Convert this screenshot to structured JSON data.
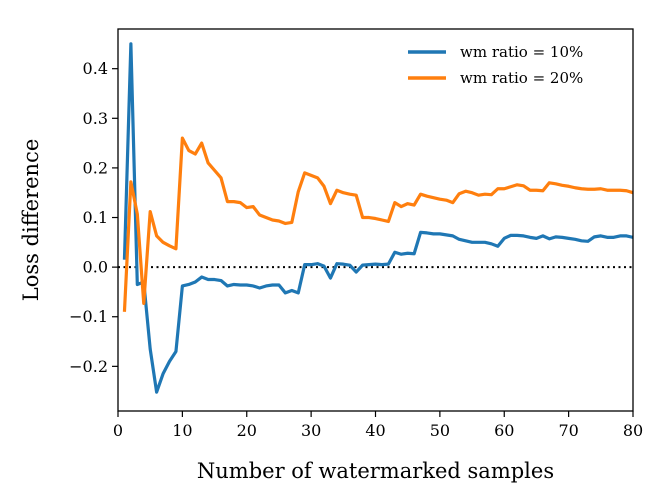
{
  "chart_data": {
    "type": "line",
    "title": "",
    "xlabel": "Number of watermarked samples",
    "ylabel": "Loss difference",
    "xlim": [
      0,
      80
    ],
    "ylim": [
      -0.29,
      0.48
    ],
    "xticks": [
      0,
      10,
      20,
      30,
      40,
      50,
      60,
      70,
      80
    ],
    "yticks": [
      -0.2,
      -0.1,
      0.0,
      0.1,
      0.2,
      0.3,
      0.4
    ],
    "xtick_labels": [
      "0",
      "10",
      "20",
      "30",
      "40",
      "50",
      "60",
      "70",
      "80"
    ],
    "ytick_labels": [
      "−0.2",
      "−0.1",
      "0.0",
      "0.1",
      "0.2",
      "0.3",
      "0.4"
    ],
    "grid": false,
    "legend_position": "top-right",
    "reference_line": {
      "y": 0.0,
      "style": "dotted",
      "color": "#000000"
    },
    "x": [
      1,
      2,
      3,
      4,
      5,
      6,
      7,
      8,
      9,
      10,
      11,
      12,
      13,
      14,
      15,
      16,
      17,
      18,
      19,
      20,
      21,
      22,
      23,
      24,
      25,
      26,
      27,
      28,
      29,
      30,
      31,
      32,
      33,
      34,
      35,
      36,
      37,
      38,
      39,
      40,
      41,
      42,
      43,
      44,
      45,
      46,
      47,
      48,
      49,
      50,
      51,
      52,
      53,
      54,
      55,
      56,
      57,
      58,
      59,
      60,
      61,
      62,
      63,
      64,
      65,
      66,
      67,
      68,
      69,
      70,
      71,
      72,
      73,
      74,
      75,
      76,
      77,
      78,
      79,
      80
    ],
    "series": [
      {
        "name": "wm ratio = 10%",
        "color": "#1f77b4",
        "values": [
          0.015,
          0.45,
          -0.035,
          -0.03,
          -0.165,
          -0.252,
          -0.215,
          -0.19,
          -0.17,
          -0.038,
          -0.035,
          -0.03,
          -0.02,
          -0.025,
          -0.025,
          -0.027,
          -0.038,
          -0.035,
          -0.036,
          -0.036,
          -0.038,
          -0.042,
          -0.038,
          -0.036,
          -0.036,
          -0.052,
          -0.047,
          -0.052,
          0.005,
          0.005,
          0.007,
          0.002,
          -0.022,
          0.007,
          0.006,
          0.004,
          -0.01,
          0.004,
          0.005,
          0.006,
          0.005,
          0.006,
          0.03,
          0.026,
          0.028,
          0.027,
          0.07,
          0.069,
          0.067,
          0.067,
          0.065,
          0.063,
          0.056,
          0.053,
          0.05,
          0.05,
          0.05,
          0.047,
          0.042,
          0.058,
          0.064,
          0.064,
          0.063,
          0.06,
          0.058,
          0.063,
          0.057,
          0.061,
          0.06,
          0.058,
          0.056,
          0.053,
          0.052,
          0.061,
          0.063,
          0.06,
          0.06,
          0.063,
          0.063,
          0.06
        ]
      },
      {
        "name": "wm ratio = 20%",
        "color": "#ff7f0e",
        "values": [
          -0.09,
          0.172,
          0.107,
          -0.073,
          0.112,
          0.063,
          0.05,
          0.043,
          0.037,
          0.26,
          0.235,
          0.228,
          0.25,
          0.21,
          0.195,
          0.18,
          0.132,
          0.132,
          0.13,
          0.12,
          0.122,
          0.105,
          0.1,
          0.095,
          0.093,
          0.088,
          0.09,
          0.152,
          0.19,
          0.185,
          0.18,
          0.163,
          0.128,
          0.155,
          0.15,
          0.147,
          0.145,
          0.1,
          0.1,
          0.098,
          0.095,
          0.092,
          0.13,
          0.122,
          0.128,
          0.125,
          0.147,
          0.143,
          0.14,
          0.137,
          0.135,
          0.13,
          0.148,
          0.153,
          0.15,
          0.145,
          0.147,
          0.146,
          0.158,
          0.158,
          0.162,
          0.166,
          0.164,
          0.155,
          0.155,
          0.154,
          0.17,
          0.168,
          0.165,
          0.163,
          0.16,
          0.158,
          0.157,
          0.157,
          0.158,
          0.155,
          0.155,
          0.155,
          0.154,
          0.15
        ]
      }
    ]
  }
}
